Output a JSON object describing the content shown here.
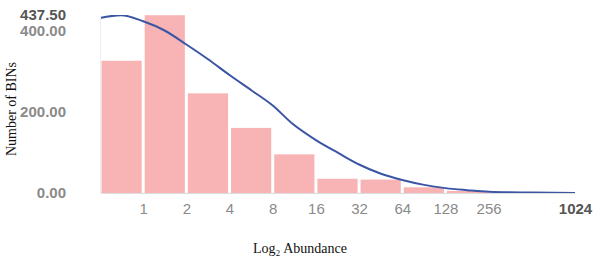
{
  "chart_data": {
    "type": "histogram",
    "x_label": "Log₂ Abundance",
    "y_label": "Number of BINs",
    "bins": [
      0.5,
      1,
      2,
      4,
      8,
      16,
      32,
      64,
      128,
      256,
      512,
      1024
    ],
    "values": [
      325,
      437,
      245,
      160,
      95,
      35,
      33,
      14,
      5,
      2,
      1
    ],
    "color": "#f8b4b4",
    "log": "x",
    "grid": false,
    "xlim": [
      0.5,
      1024
    ],
    "xticks": [
      1,
      2,
      4,
      8,
      16,
      32,
      64,
      128,
      256,
      1024
    ],
    "ylim": [
      0,
      437.5
    ],
    "yticks": [
      {
        "value": 0,
        "label": "0.00"
      },
      {
        "value": 200,
        "label": "200.00"
      },
      {
        "value": 400,
        "label": "400.00"
      },
      {
        "value": 437.5,
        "label": "437.50"
      }
    ],
    "series": [
      {
        "type": "line",
        "color": "#3b55a5",
        "x": [
          0.5,
          0.7,
          1,
          1.4,
          2,
          2.8,
          4,
          5.7,
          8,
          11,
          16,
          23,
          32,
          45,
          64,
          91,
          128,
          181,
          256,
          512,
          1024
        ],
        "values": [
          430,
          437,
          422,
          400,
          365,
          330,
          290,
          252,
          215,
          170,
          130,
          98,
          70,
          48,
          32,
          20,
          12,
          7,
          3,
          1,
          0
        ]
      }
    ]
  }
}
